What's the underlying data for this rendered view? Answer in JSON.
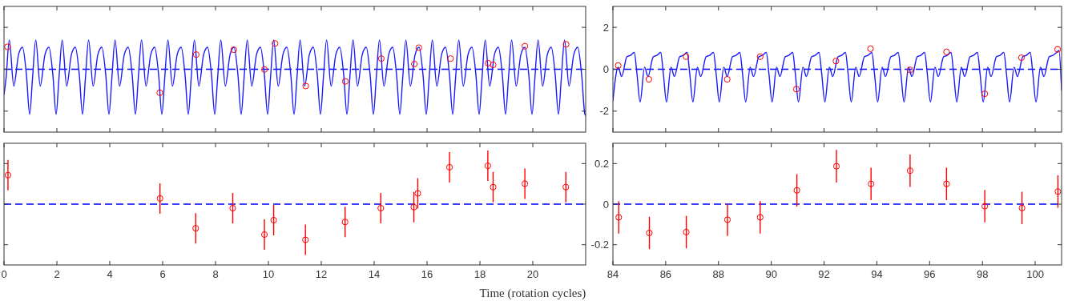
{
  "chart_data": [
    {
      "type": "line",
      "xlim": [
        0,
        22
      ],
      "xticks": [
        0,
        2,
        4,
        6,
        8,
        10,
        12,
        14,
        16,
        18,
        20
      ],
      "ylim": [
        -3,
        3
      ],
      "yticks": [
        -2,
        0,
        2
      ],
      "tick_labels": false,
      "ref_lines": [
        {
          "axis": "y",
          "value": 0,
          "color": "#0000ff",
          "line_style": "dashed"
        }
      ],
      "series": [
        {
          "color": "#1a1aff",
          "marker": "none",
          "line_style": "solid",
          "x": [
            0,
            0.08,
            0.2,
            0.37,
            0.55,
            0.7,
            0.85,
            0.97,
            1.08,
            1.2,
            1.37,
            1.55,
            1.7,
            1.85,
            1.97,
            2.08,
            2.2,
            2.37,
            2.55,
            2.7,
            2.85,
            2.97,
            3.08,
            3.2,
            3.37,
            3.55,
            3.7,
            3.85,
            3.97,
            4.08,
            4.2,
            4.37,
            4.55,
            4.7,
            4.85,
            4.97,
            5.08,
            5.2,
            5.37,
            5.55,
            5.7,
            5.85,
            5.97,
            6.08,
            6.2,
            6.37,
            6.55,
            6.7,
            6.85,
            6.97,
            7.08,
            7.2,
            7.37,
            7.55,
            7.7,
            7.85,
            7.97,
            8.08,
            8.2,
            8.37,
            8.55,
            8.7,
            8.85,
            8.97,
            9.08,
            9.2,
            9.37,
            9.55,
            9.7,
            9.85,
            9.97,
            10.08,
            10.2,
            10.37,
            10.55,
            10.7,
            10.85,
            10.97,
            11.08,
            11.2,
            11.37,
            11.55,
            11.7,
            11.85,
            11.97,
            12.08,
            12.2,
            12.37,
            12.55,
            12.7,
            12.85,
            12.97,
            13.08,
            13.2,
            13.37,
            13.55,
            13.7,
            13.85,
            13.97,
            14.08,
            14.2,
            14.37,
            14.55,
            14.7,
            14.85,
            14.97,
            15.08,
            15.2,
            15.37,
            15.55,
            15.7,
            15.85,
            15.97,
            16.08,
            16.2,
            16.37,
            16.55,
            16.7,
            16.85,
            16.97,
            17.08,
            17.2,
            17.37,
            17.55,
            17.7,
            17.85,
            17.97,
            18.08,
            18.2,
            18.37,
            18.55,
            18.7,
            18.85,
            18.97,
            19.08,
            19.2,
            19.37,
            19.55,
            19.7,
            19.85,
            19.97,
            20.08,
            20.2,
            20.37,
            20.55,
            20.7,
            20.85,
            20.97,
            21.08,
            21.2,
            21.37,
            21.55,
            21.7,
            21.85,
            21.97,
            22
          ],
          "values": [
            -1.2,
            -0.4,
            1.4,
            -0.8,
            0.7,
            1.05,
            -0.3,
            -2.15,
            -0.4,
            1.4,
            -0.8,
            0.7,
            1.05,
            -0.3,
            -2.15,
            -0.4,
            1.4,
            -0.8,
            0.7,
            1.05,
            -0.3,
            -2.15,
            -0.4,
            1.4,
            -0.8,
            0.7,
            1.05,
            -0.3,
            -2.15,
            -0.4,
            1.4,
            -0.8,
            0.7,
            1.05,
            -0.3,
            -2.15,
            -0.4,
            1.4,
            -0.8,
            0.7,
            1.05,
            -0.3,
            -2.15,
            -0.4,
            1.4,
            -0.8,
            0.7,
            1.05,
            -0.3,
            -2.15,
            -0.4,
            1.4,
            -0.8,
            0.7,
            1.05,
            -0.3,
            -2.15,
            -0.4,
            1.4,
            -0.8,
            0.7,
            1.05,
            -0.3,
            -2.15,
            -0.4,
            1.4,
            -0.8,
            0.7,
            1.05,
            -0.3,
            -2.15,
            -0.4,
            1.4,
            -0.8,
            0.7,
            1.05,
            -0.3,
            -2.15,
            -0.4,
            1.4,
            -0.8,
            0.7,
            1.05,
            -0.3,
            -2.15,
            -0.4,
            1.4,
            -0.8,
            0.7,
            1.05,
            -0.3,
            -2.15,
            -0.4,
            1.4,
            -0.8,
            0.7,
            1.05,
            -0.3,
            -2.15,
            -0.4,
            1.4,
            -0.8,
            0.7,
            1.05,
            -0.3,
            -2.15,
            -0.4,
            1.4,
            -0.8,
            0.7,
            1.05,
            -0.3,
            -2.15,
            -0.4,
            1.4,
            -0.8,
            0.7,
            1.05,
            -0.3,
            -2.15,
            -0.4,
            1.4,
            -0.8,
            0.7,
            1.05,
            -0.3,
            -2.15,
            -0.4,
            1.4,
            -0.8,
            0.7,
            1.05,
            -0.3,
            -2.15,
            -0.4,
            1.4,
            -0.8,
            0.7,
            1.05,
            -0.3,
            -2.15,
            -0.4,
            1.4,
            -0.8,
            0.7,
            1.05,
            -0.3,
            -2.15,
            -0.4,
            1.4,
            -0.8,
            0.7,
            1.05,
            -0.3,
            -2.15,
            -2.2
          ]
        },
        {
          "type": "scatter",
          "color": "#ff0000",
          "marker": "circle",
          "x": [
            0.13,
            5.89,
            7.27,
            8.69,
            9.85,
            10.25,
            11.41,
            12.91,
            14.27,
            15.52,
            15.69,
            16.89,
            18.31,
            18.5,
            19.7,
            21.26
          ],
          "values": [
            1.07,
            -1.12,
            0.7,
            0.93,
            -0.01,
            1.23,
            -0.8,
            -0.58,
            0.51,
            0.25,
            1.03,
            0.51,
            0.29,
            0.21,
            1.1,
            1.19
          ]
        }
      ]
    },
    {
      "type": "line",
      "xlim": [
        84,
        101
      ],
      "xticks": [
        84,
        86,
        88,
        90,
        92,
        94,
        96,
        98,
        100
      ],
      "ylim": [
        -3,
        3
      ],
      "yticks": [
        -2,
        0,
        2
      ],
      "tick_labels": "y",
      "ref_lines": [
        {
          "axis": "y",
          "value": 0,
          "color": "#0000ff",
          "line_style": "dashed"
        }
      ],
      "series": [
        {
          "color": "#1a1aff",
          "marker": "none",
          "line_style": "solid",
          "x": [
            84,
            84.2,
            84.33,
            84.53,
            84.65,
            84.81,
            84.91,
            85.03,
            85.2,
            85.33,
            85.53,
            85.65,
            85.81,
            85.91,
            86.03,
            86.2,
            86.33,
            86.53,
            86.65,
            86.81,
            86.91,
            87.03,
            87.2,
            87.33,
            87.53,
            87.65,
            87.81,
            87.91,
            88.03,
            88.2,
            88.33,
            88.53,
            88.65,
            88.81,
            88.91,
            89.03,
            89.2,
            89.33,
            89.53,
            89.65,
            89.81,
            89.91,
            90.03,
            90.2,
            90.33,
            90.53,
            90.65,
            90.81,
            90.91,
            91.03,
            91.2,
            91.33,
            91.53,
            91.65,
            91.81,
            91.91,
            92.03,
            92.2,
            92.33,
            92.53,
            92.65,
            92.81,
            92.91,
            93.03,
            93.2,
            93.33,
            93.53,
            93.65,
            93.81,
            93.91,
            94.03,
            94.2,
            94.33,
            94.53,
            94.65,
            94.81,
            94.91,
            95.03,
            95.2,
            95.33,
            95.53,
            95.65,
            95.81,
            95.91,
            96.03,
            96.2,
            96.33,
            96.53,
            96.65,
            96.81,
            96.91,
            97.03,
            97.2,
            97.33,
            97.53,
            97.65,
            97.81,
            97.91,
            98.03,
            98.2,
            98.33,
            98.53,
            98.65,
            98.81,
            98.91,
            99.03,
            99.2,
            99.33,
            99.53,
            99.65,
            99.81,
            99.91,
            100.03,
            100.2,
            100.33,
            100.53,
            100.65,
            100.81,
            100.9,
            101
          ],
          "values": [
            -1.5,
            0.1,
            -0.35,
            0.6,
            0.65,
            0.8,
            -0.2,
            -1.56,
            0.1,
            -0.35,
            0.6,
            0.65,
            0.8,
            -0.2,
            -1.56,
            0.1,
            -0.35,
            0.6,
            0.65,
            0.8,
            -0.2,
            -1.56,
            0.1,
            -0.35,
            0.6,
            0.65,
            0.8,
            -0.2,
            -1.56,
            0.1,
            -0.35,
            0.6,
            0.65,
            0.8,
            -0.2,
            -1.56,
            0.1,
            -0.35,
            0.6,
            0.65,
            0.8,
            -0.2,
            -1.56,
            0.1,
            -0.35,
            0.6,
            0.65,
            0.8,
            -0.2,
            -1.56,
            0.1,
            -0.35,
            0.6,
            0.65,
            0.8,
            -0.2,
            -1.56,
            0.1,
            -0.35,
            0.6,
            0.65,
            0.8,
            -0.2,
            -1.56,
            0.1,
            -0.35,
            0.6,
            0.65,
            0.8,
            -0.2,
            -1.56,
            0.1,
            -0.35,
            0.6,
            0.65,
            0.8,
            -0.2,
            -1.56,
            0.1,
            -0.35,
            0.6,
            0.65,
            0.8,
            -0.2,
            -1.56,
            0.1,
            -0.35,
            0.6,
            0.65,
            0.8,
            -0.2,
            -1.56,
            0.1,
            -0.35,
            0.6,
            0.65,
            0.8,
            -0.2,
            -1.56,
            0.1,
            -0.35,
            0.6,
            0.65,
            0.8,
            -0.2,
            -1.56,
            0.1,
            -0.35,
            0.6,
            0.65,
            0.8,
            -0.2,
            -1.56,
            0.1,
            -0.35,
            0.6,
            0.65,
            0.8,
            0.9,
            -1.0
          ]
        },
        {
          "type": "scatter",
          "color": "#ff0000",
          "marker": "circle",
          "x": [
            84.2,
            85.36,
            86.77,
            88.33,
            89.58,
            90.95,
            92.45,
            93.76,
            95.26,
            96.64,
            98.09,
            99.48,
            100.85
          ],
          "values": [
            0.18,
            -0.48,
            0.6,
            -0.48,
            0.6,
            -0.95,
            0.39,
            0.98,
            -0.03,
            0.83,
            -1.17,
            0.55,
            0.95
          ]
        }
      ]
    },
    {
      "type": "scatter",
      "xlim": [
        0,
        22
      ],
      "xticks": [
        0,
        2,
        4,
        6,
        8,
        10,
        12,
        14,
        16,
        18,
        20
      ],
      "ylim": [
        -0.3,
        0.3
      ],
      "yticks": [
        -0.2,
        0,
        0.2
      ],
      "tick_labels": "x",
      "xlabel": "Time (rotation cycles)",
      "ref_lines": [
        {
          "axis": "y",
          "value": 0,
          "color": "#0000ff",
          "line_style": "dashed"
        }
      ],
      "series": [
        {
          "color": "#ff0000",
          "marker": "circle",
          "x": [
            0.15,
            5.9,
            7.25,
            8.65,
            9.85,
            10.2,
            11.4,
            12.9,
            14.25,
            15.5,
            15.65,
            16.85,
            18.3,
            18.5,
            19.7,
            21.25
          ],
          "values": [
            0.143,
            0.028,
            -0.119,
            -0.02,
            -0.15,
            -0.079,
            -0.176,
            -0.088,
            -0.02,
            -0.015,
            0.053,
            0.182,
            0.189,
            0.084,
            0.101,
            0.084
          ],
          "errors": [
            0.075,
            0.075,
            0.075,
            0.075,
            0.075,
            0.075,
            0.075,
            0.075,
            0.075,
            0.075,
            0.075,
            0.075,
            0.075,
            0.075,
            0.075,
            0.075
          ]
        }
      ]
    },
    {
      "type": "scatter",
      "xlim": [
        84,
        101
      ],
      "xticks": [
        84,
        86,
        88,
        90,
        92,
        94,
        96,
        98,
        100
      ],
      "ylim": [
        -0.3,
        0.3
      ],
      "yticks": [
        -0.2,
        0,
        0.2
      ],
      "ref_lines": [
        {
          "axis": "y",
          "value": 0,
          "color": "#0000ff",
          "line_style": "dashed"
        }
      ],
      "series": [
        {
          "color": "#ff0000",
          "marker": "circle",
          "x": [
            84.22,
            85.38,
            86.78,
            88.34,
            89.58,
            90.97,
            92.47,
            93.78,
            95.26,
            96.64,
            98.09,
            99.5,
            100.86
          ],
          "values": [
            -0.065,
            -0.142,
            -0.138,
            -0.077,
            -0.065,
            0.068,
            0.187,
            0.1,
            0.165,
            0.1,
            -0.01,
            -0.019,
            0.062
          ],
          "errors": [
            0.08,
            0.08,
            0.08,
            0.08,
            0.08,
            0.08,
            0.08,
            0.08,
            0.08,
            0.08,
            0.08,
            0.08,
            0.08
          ]
        }
      ]
    }
  ]
}
